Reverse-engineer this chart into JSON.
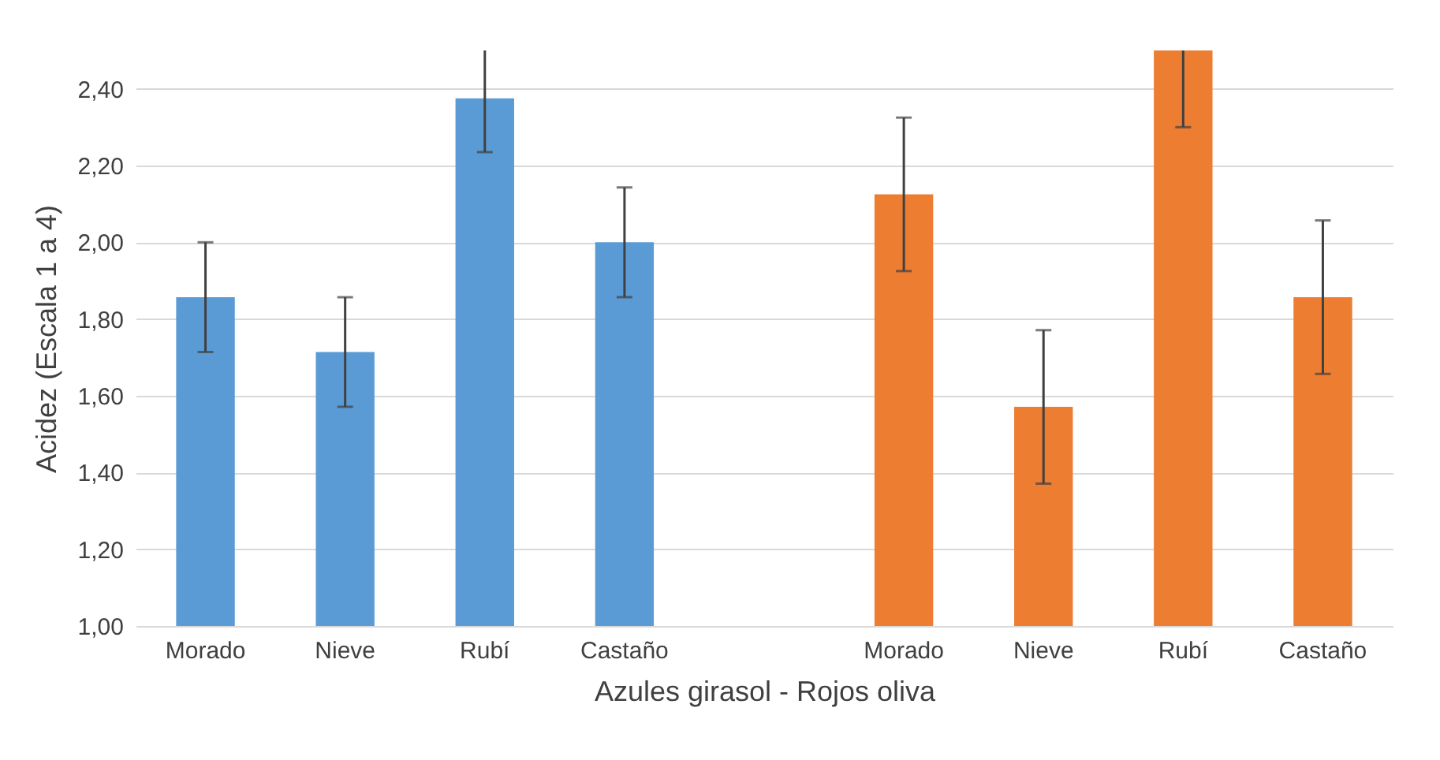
{
  "chart_data": {
    "type": "bar",
    "xlabel": "Azules girasol - Rojos oliva",
    "ylabel": "Acidez (Escala 1 a 4)",
    "categories": [
      "Morado",
      "Nieve",
      "Rubí",
      "Castaño",
      null,
      "Morado",
      "Nieve",
      "Rubí",
      "Castaño"
    ],
    "values": [
      1.857,
      1.714,
      2.375,
      2.0,
      null,
      2.125,
      1.571,
      2.5,
      1.857
    ],
    "errors": [
      0.143,
      0.143,
      0.14,
      0.143,
      null,
      0.2,
      0.2,
      0.2,
      0.2
    ],
    "colors": [
      "#5b9bd5",
      "#5b9bd5",
      "#5b9bd5",
      "#5b9bd5",
      null,
      "#ed7d31",
      "#ed7d31",
      "#ed7d31",
      "#ed7d31"
    ],
    "ylim": [
      1,
      2.5
    ],
    "yticks": [
      {
        "value": 1,
        "label": "1,00"
      },
      {
        "value": 1.2,
        "label": "1,20"
      },
      {
        "value": 1.4,
        "label": "1,40"
      },
      {
        "value": 1.6,
        "label": "1,60"
      },
      {
        "value": 1.8,
        "label": "1,80"
      },
      {
        "value": 2,
        "label": "2,00"
      },
      {
        "value": 2.2,
        "label": "2,20"
      },
      {
        "value": 2.4,
        "label": "2,40"
      }
    ],
    "grid": "y"
  }
}
